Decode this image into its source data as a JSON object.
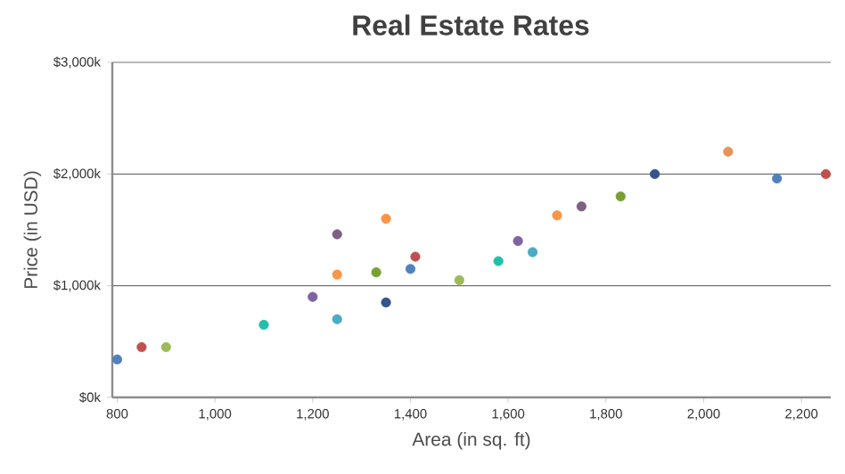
{
  "chart_data": {
    "type": "scatter",
    "title": "Real Estate Rates",
    "xlabel": "Area (in sq. ft)",
    "ylabel": "Price (in USD)",
    "x": [
      800,
      850,
      900,
      1100,
      1200,
      1250,
      1250,
      1250,
      1330,
      1350,
      1350,
      1400,
      1410,
      1500,
      1580,
      1620,
      1650,
      1700,
      1750,
      1830,
      1900,
      2050,
      2150,
      2250
    ],
    "values": [
      340,
      450,
      450,
      650,
      900,
      1460,
      1100,
      700,
      1120,
      1600,
      850,
      1150,
      1260,
      1050,
      1220,
      1400,
      1300,
      1630,
      1710,
      1800,
      2000,
      2200,
      1960,
      2000
    ],
    "colors": [
      "#4f81bc",
      "#c0504e",
      "#9bbb58",
      "#23bfaa",
      "#8064a1",
      "#7f6084",
      "#f79647",
      "#4aacc5",
      "#77a033",
      "#f79647",
      "#33558b",
      "#4f81bc",
      "#c0504e",
      "#9bbb58",
      "#23bfaa",
      "#8064a1",
      "#4aacc5",
      "#f79647",
      "#7f6084",
      "#77a033",
      "#33558b",
      "#e8935a",
      "#4f81bc",
      "#c0504e"
    ],
    "xlim": [
      790,
      2260
    ],
    "ylim": [
      0,
      3000
    ],
    "xticks": [
      800,
      {
        "value": 1000,
        "label": "1,000"
      },
      {
        "value": 1200,
        "label": "1,200"
      },
      {
        "value": 1400,
        "label": "1,400"
      },
      {
        "value": 1600,
        "label": "1,600"
      },
      {
        "value": 1800,
        "label": "1,800"
      },
      {
        "value": 2000,
        "label": "2,000"
      },
      {
        "value": 2200,
        "label": "2,200"
      }
    ],
    "yticks": [
      {
        "value": 0,
        "label": "$0k"
      },
      {
        "value": 1000,
        "label": "$1,000k"
      },
      {
        "value": 2000,
        "label": "$2,000k"
      },
      {
        "value": 3000,
        "label": "$3,000k"
      }
    ],
    "grid": "y",
    "marker": "circle"
  }
}
